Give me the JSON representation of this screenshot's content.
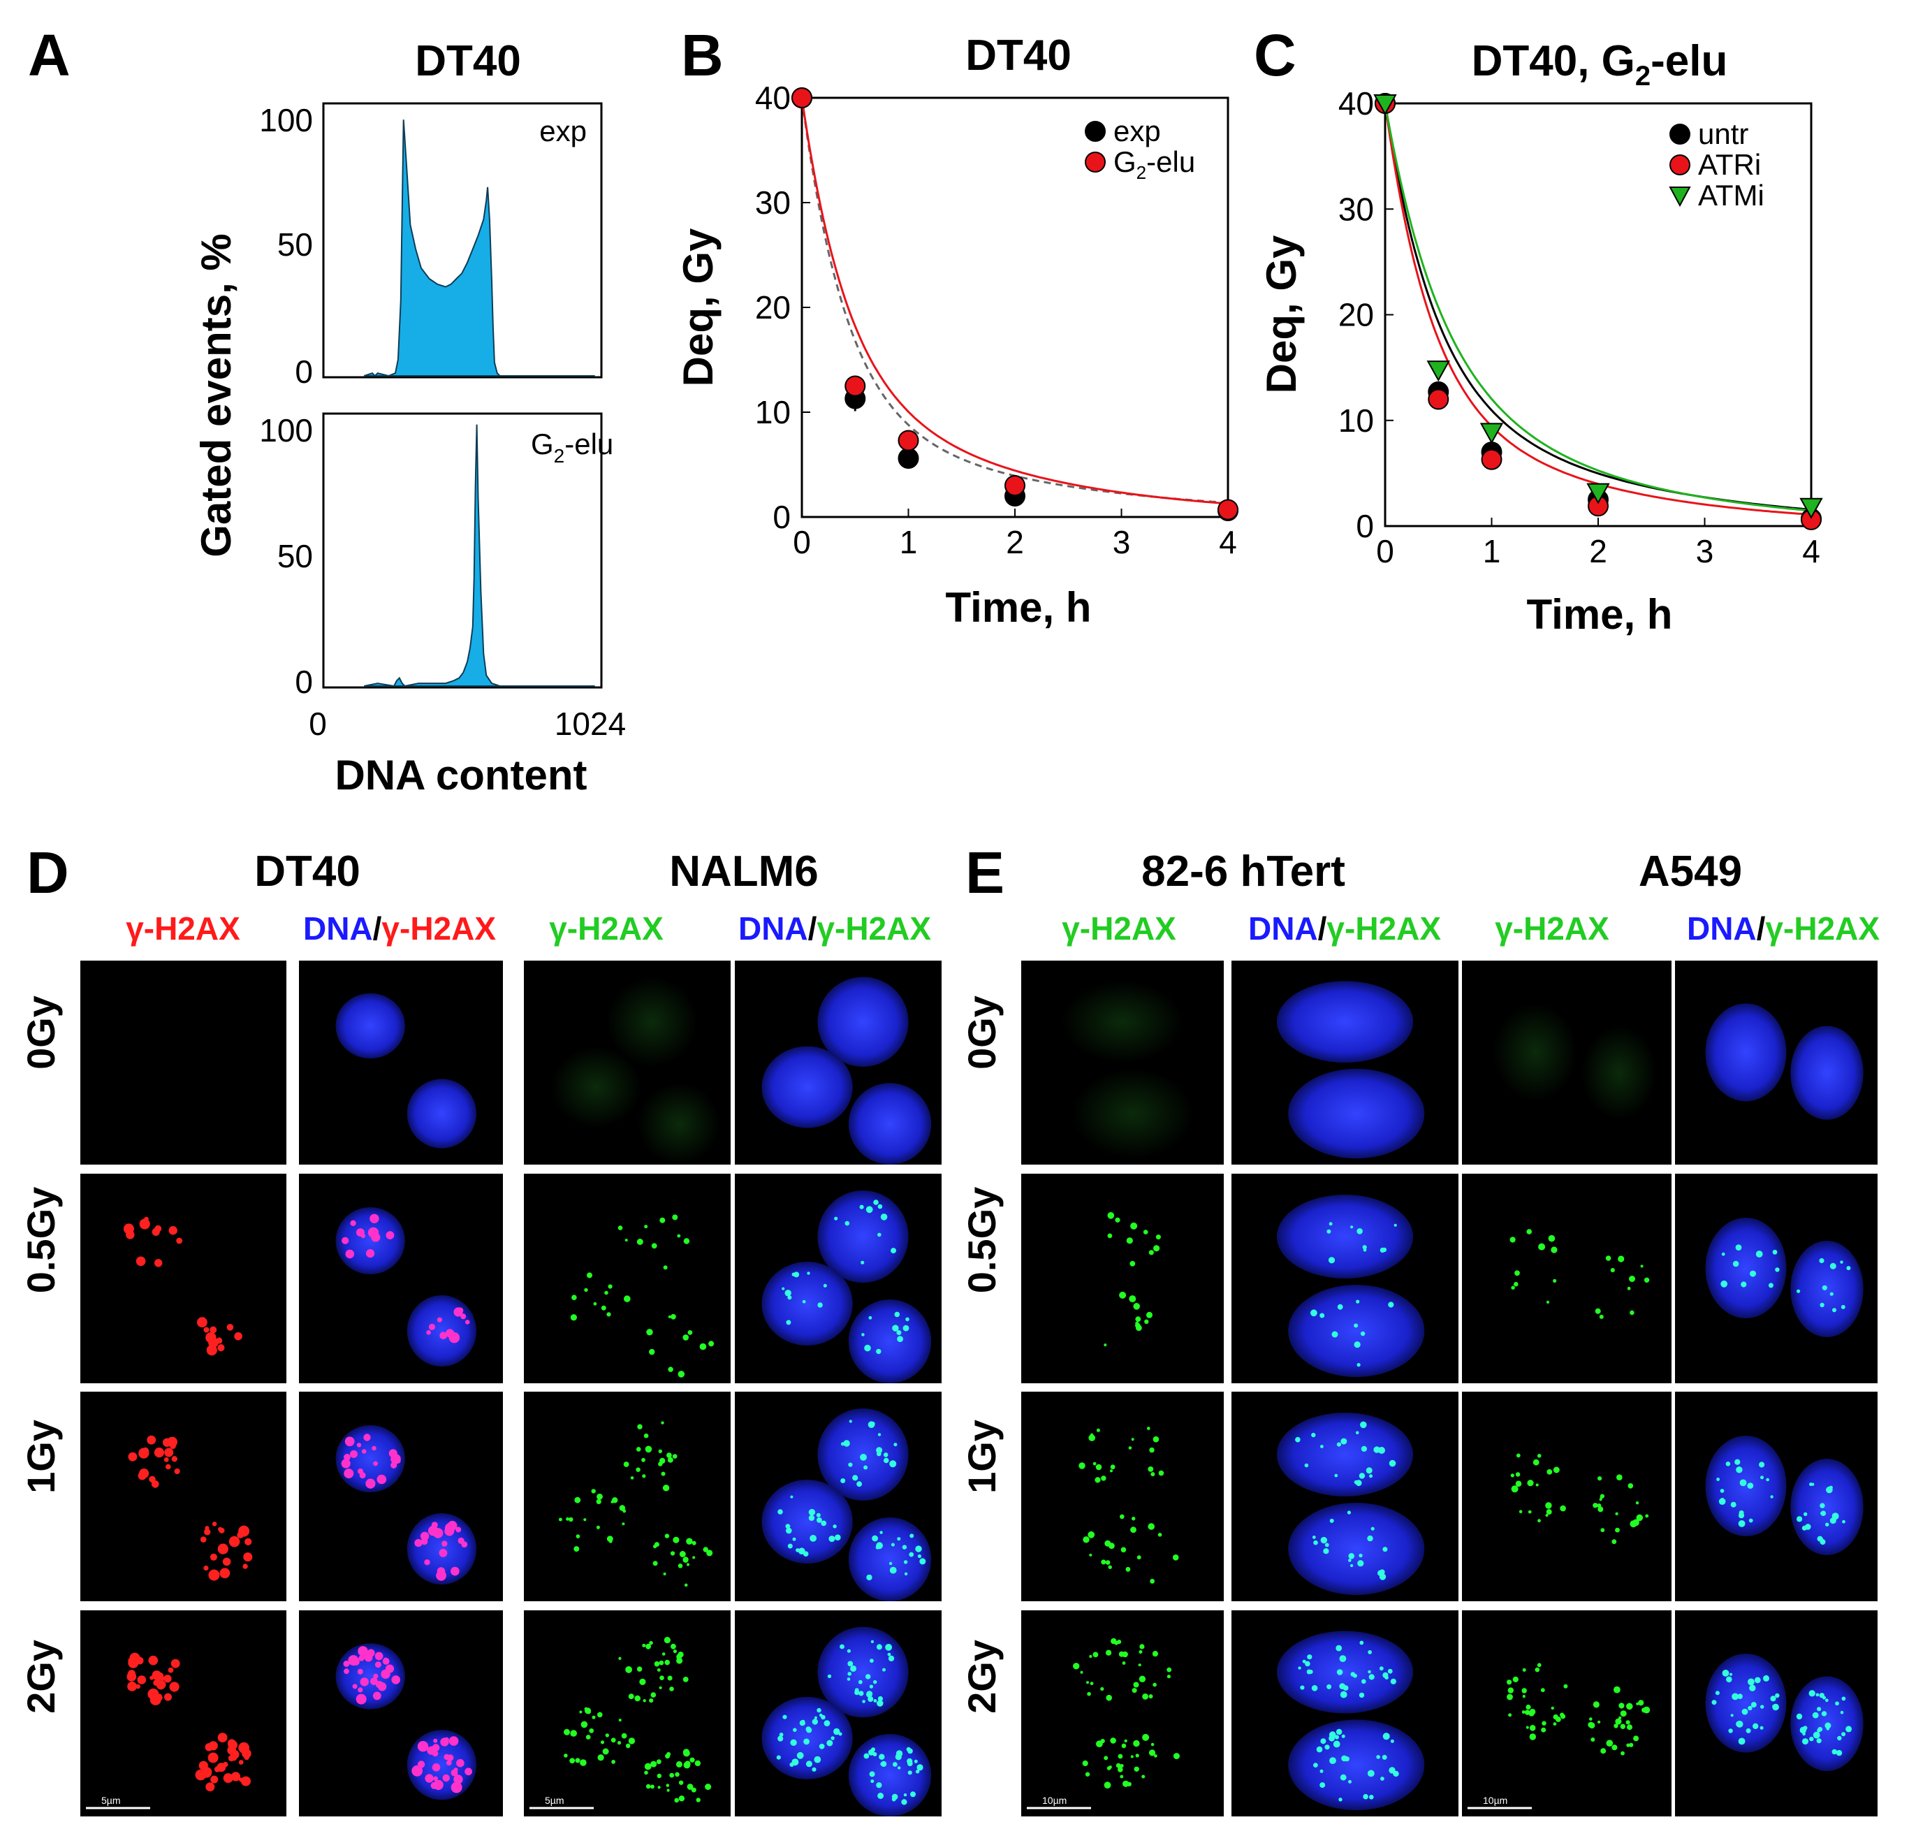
{
  "panels": {
    "A": {
      "letter": "A",
      "title": "DT40",
      "ylabel": "Gated events, %",
      "xlabel": "DNA content",
      "top_label": "exp",
      "bottom_label_main": "G",
      "bottom_label_sub": "2",
      "bottom_label_rest": "-elu",
      "yticks": [
        "100",
        "50",
        "0"
      ],
      "xticks": [
        "0",
        "1024"
      ]
    },
    "B": {
      "letter": "B",
      "title": "DT40",
      "ylabel": "Deq, Gy",
      "xlabel": "Time, h"
    },
    "C": {
      "letter": "C",
      "title_main": "DT40, G",
      "title_sub": "2",
      "title_rest": "-elu",
      "ylabel": "Deq, Gy",
      "xlabel": "Time, h"
    },
    "D": {
      "letter": "D",
      "group1": "DT40",
      "group2": "NALM6",
      "scalebar": "5µm",
      "col_gamma": "γ-H2AX",
      "col_dna": "DNA",
      "col_slash": "/"
    },
    "E": {
      "letter": "E",
      "group1": "82-6 hTert",
      "group2": "A549",
      "scalebar": "10µm"
    },
    "rows": [
      "0Gy",
      "0.5Gy",
      "1Gy",
      "2Gy"
    ]
  },
  "colors": {
    "exp": "#000000",
    "g2elu": "#e8141a",
    "atmi": "#1fb31f",
    "histogram": "#17aee8",
    "dna_blue": "#1a1aff",
    "red_label": "#ff1a1a",
    "green_label": "#22cc22"
  },
  "chart_data": [
    {
      "type": "area",
      "title": "DT40",
      "subplot": "exp",
      "xlabel": "DNA content",
      "ylabel": "Gated events, %",
      "xlim": [
        0,
        1024
      ],
      "ylim": [
        0,
        100
      ],
      "x": [
        150,
        180,
        190,
        200,
        240,
        265,
        275,
        285,
        295,
        305,
        320,
        340,
        360,
        390,
        420,
        450,
        470,
        490,
        510,
        530,
        550,
        570,
        590,
        600,
        605,
        612,
        620,
        625,
        630,
        640,
        650,
        660,
        700,
        800,
        900,
        1000
      ],
      "y": [
        0,
        1,
        0,
        1,
        0,
        1,
        6,
        28,
        95,
        80,
        56,
        47,
        40,
        36,
        34,
        33,
        34,
        36,
        38,
        42,
        47,
        52,
        58,
        65,
        70,
        58,
        35,
        18,
        5,
        1,
        0,
        0,
        0,
        0,
        0,
        0
      ]
    },
    {
      "type": "area",
      "title": "DT40",
      "subplot": "G2-elu",
      "xlabel": "DNA content",
      "ylabel": "Gated events, %",
      "xlim": [
        0,
        1024
      ],
      "ylim": [
        0,
        100
      ],
      "x": [
        150,
        200,
        260,
        270,
        280,
        290,
        300,
        350,
        400,
        450,
        480,
        500,
        515,
        530,
        540,
        550,
        555,
        560,
        565,
        570,
        580,
        590,
        600,
        620,
        650,
        700,
        800,
        900,
        1000
      ],
      "y": [
        0,
        1,
        0,
        2,
        3,
        1,
        0,
        1,
        1,
        1,
        2,
        3,
        5,
        9,
        14,
        22,
        40,
        75,
        97,
        70,
        35,
        12,
        4,
        1,
        0,
        0,
        0,
        0,
        0
      ]
    },
    {
      "type": "scatter",
      "title": "DT40",
      "xlabel": "Time, h",
      "ylabel": "Deq, Gy",
      "xlim": [
        0,
        4
      ],
      "ylim": [
        0,
        40
      ],
      "xticks": [
        0,
        1,
        2,
        3,
        4
      ],
      "yticks": [
        0,
        10,
        20,
        30,
        40
      ],
      "legend": "top-right",
      "series": [
        {
          "name": "exp",
          "x": [
            0,
            0.5,
            1,
            2,
            4
          ],
          "y": [
            40,
            11.3,
            5.6,
            2.0,
            0.6
          ],
          "err": [
            0,
            1.2,
            1.0,
            0.9,
            0.2
          ],
          "fit": {
            "style": "dashed",
            "a": 30,
            "k": 2.4,
            "b": 10,
            "c": 0.5
          }
        },
        {
          "name": "G2-elu",
          "x": [
            0,
            0.5,
            1,
            2,
            4
          ],
          "y": [
            40,
            12.5,
            7.3,
            3.0,
            0.7
          ],
          "err": [
            0,
            0.6,
            0.6,
            0.5,
            0.1
          ],
          "fit": {
            "style": "solid",
            "a": 26,
            "k": 2.4,
            "b": 14,
            "c": 0.6
          }
        }
      ]
    },
    {
      "type": "scatter",
      "title": "DT40, G2-elu",
      "xlabel": "Time, h",
      "ylabel": "Deq, Gy",
      "xlim": [
        0,
        4
      ],
      "ylim": [
        0,
        40
      ],
      "xticks": [
        0,
        1,
        2,
        3,
        4
      ],
      "yticks": [
        0,
        10,
        20,
        30,
        40
      ],
      "legend": "top-right",
      "series": [
        {
          "name": "untr",
          "marker": "circle",
          "x": [
            0,
            0.5,
            1,
            2,
            4
          ],
          "y": [
            40,
            12.7,
            7.0,
            2.5,
            0.7
          ],
          "fit": {
            "a": 26,
            "k": 2.2,
            "b": 14,
            "c": 0.55
          }
        },
        {
          "name": "ATRi",
          "marker": "circle",
          "x": [
            0,
            0.5,
            1,
            2,
            4
          ],
          "y": [
            40,
            12.0,
            6.3,
            1.9,
            0.6
          ],
          "fit": {
            "a": 27,
            "k": 2.4,
            "b": 13,
            "c": 0.62
          }
        },
        {
          "name": "ATMi",
          "marker": "triangle-down",
          "x": [
            0,
            0.5,
            1,
            2,
            4
          ],
          "y": [
            40,
            14.8,
            8.9,
            3.2,
            1.8
          ],
          "fit": {
            "a": 24,
            "k": 2.0,
            "b": 16,
            "c": 0.6
          }
        }
      ]
    }
  ]
}
